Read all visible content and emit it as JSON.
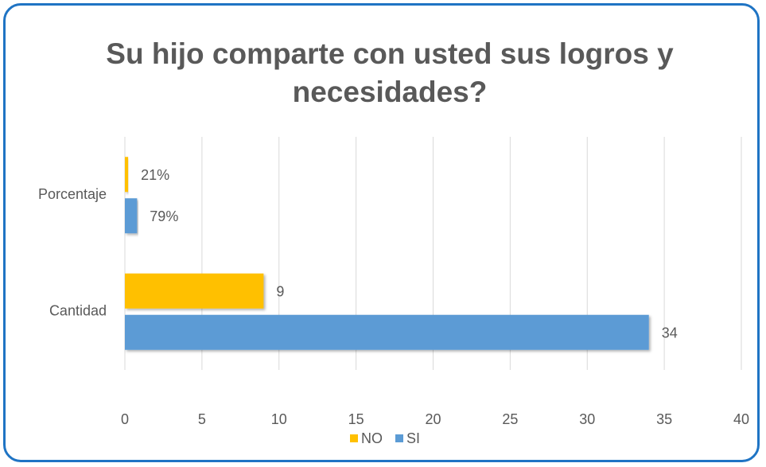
{
  "chart_data": {
    "type": "hbar",
    "title": "Su hijo comparte con usted sus logros y necesidades?",
    "categories": [
      "Porcentaje",
      "Cantidad"
    ],
    "series": [
      {
        "name": "NO",
        "color": "#ffc000",
        "values": [
          0.21,
          9
        ],
        "value_labels": [
          "21%",
          "9"
        ]
      },
      {
        "name": "SI",
        "color": "#5b9bd5",
        "values": [
          0.79,
          34
        ],
        "value_labels": [
          "79%",
          "34"
        ]
      }
    ],
    "xlim": [
      0,
      40
    ],
    "xticks": [
      0,
      5,
      10,
      15,
      20,
      25,
      30,
      35,
      40
    ],
    "grid": true,
    "legend": "bottom"
  }
}
